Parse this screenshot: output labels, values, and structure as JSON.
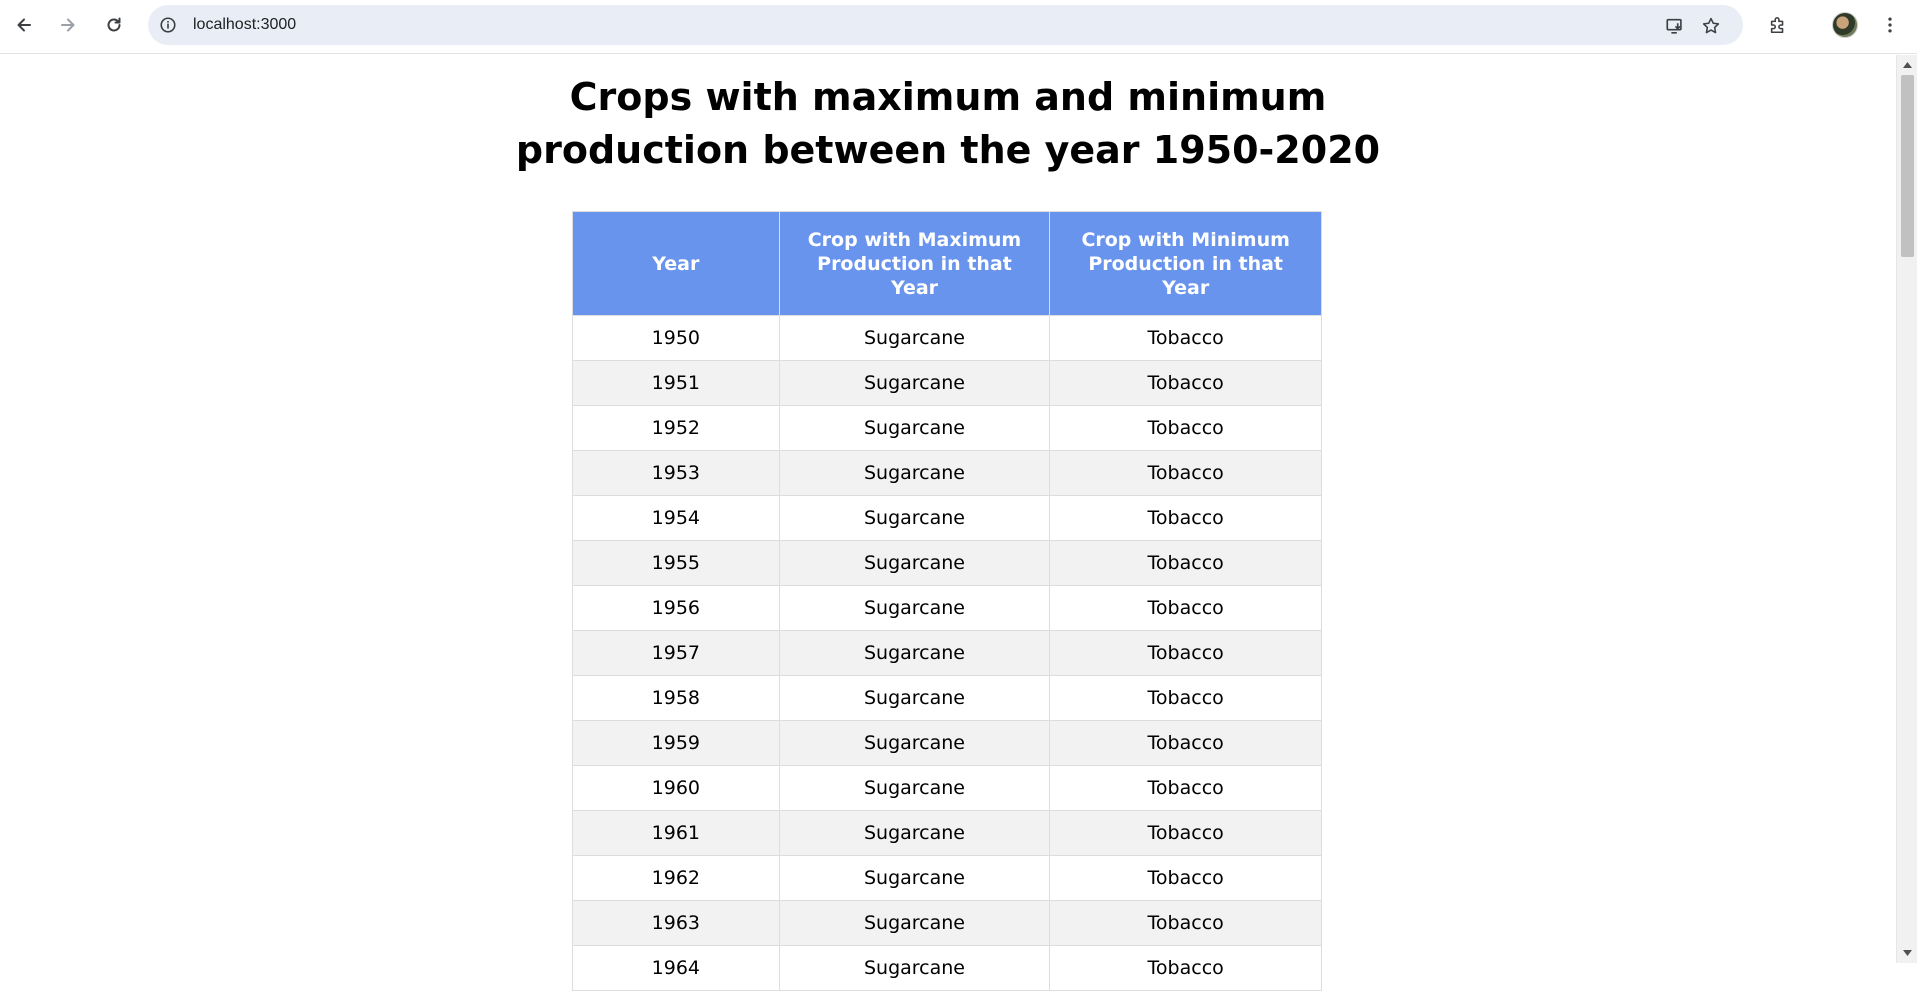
{
  "browser": {
    "url": "localhost:3000",
    "icons": {
      "back": "back-arrow-icon",
      "forward": "forward-arrow-icon",
      "reload": "reload-icon",
      "site_info": "info-icon",
      "install": "install-app-icon",
      "bookmark": "star-icon",
      "extensions": "puzzle-icon",
      "menu": "kebab-menu-icon"
    }
  },
  "page": {
    "title_line1": "Crops with maximum and minimum",
    "title_line2": "production between the year 1950-2020"
  },
  "table": {
    "headers": [
      "Year",
      "Crop with Maximum Production in that Year",
      "Crop with Minimum Production in that Year"
    ],
    "rows": [
      [
        "1950",
        "Sugarcane",
        "Tobacco"
      ],
      [
        "1951",
        "Sugarcane",
        "Tobacco"
      ],
      [
        "1952",
        "Sugarcane",
        "Tobacco"
      ],
      [
        "1953",
        "Sugarcane",
        "Tobacco"
      ],
      [
        "1954",
        "Sugarcane",
        "Tobacco"
      ],
      [
        "1955",
        "Sugarcane",
        "Tobacco"
      ],
      [
        "1956",
        "Sugarcane",
        "Tobacco"
      ],
      [
        "1957",
        "Sugarcane",
        "Tobacco"
      ],
      [
        "1958",
        "Sugarcane",
        "Tobacco"
      ],
      [
        "1959",
        "Sugarcane",
        "Tobacco"
      ],
      [
        "1960",
        "Sugarcane",
        "Tobacco"
      ],
      [
        "1961",
        "Sugarcane",
        "Tobacco"
      ],
      [
        "1962",
        "Sugarcane",
        "Tobacco"
      ],
      [
        "1963",
        "Sugarcane",
        "Tobacco"
      ],
      [
        "1964",
        "Sugarcane",
        "Tobacco"
      ]
    ]
  },
  "colors": {
    "header_bg": "#6894ee",
    "header_text": "#ffffff",
    "alt_row_bg": "#f2f2f2",
    "border": "#dddddd"
  }
}
